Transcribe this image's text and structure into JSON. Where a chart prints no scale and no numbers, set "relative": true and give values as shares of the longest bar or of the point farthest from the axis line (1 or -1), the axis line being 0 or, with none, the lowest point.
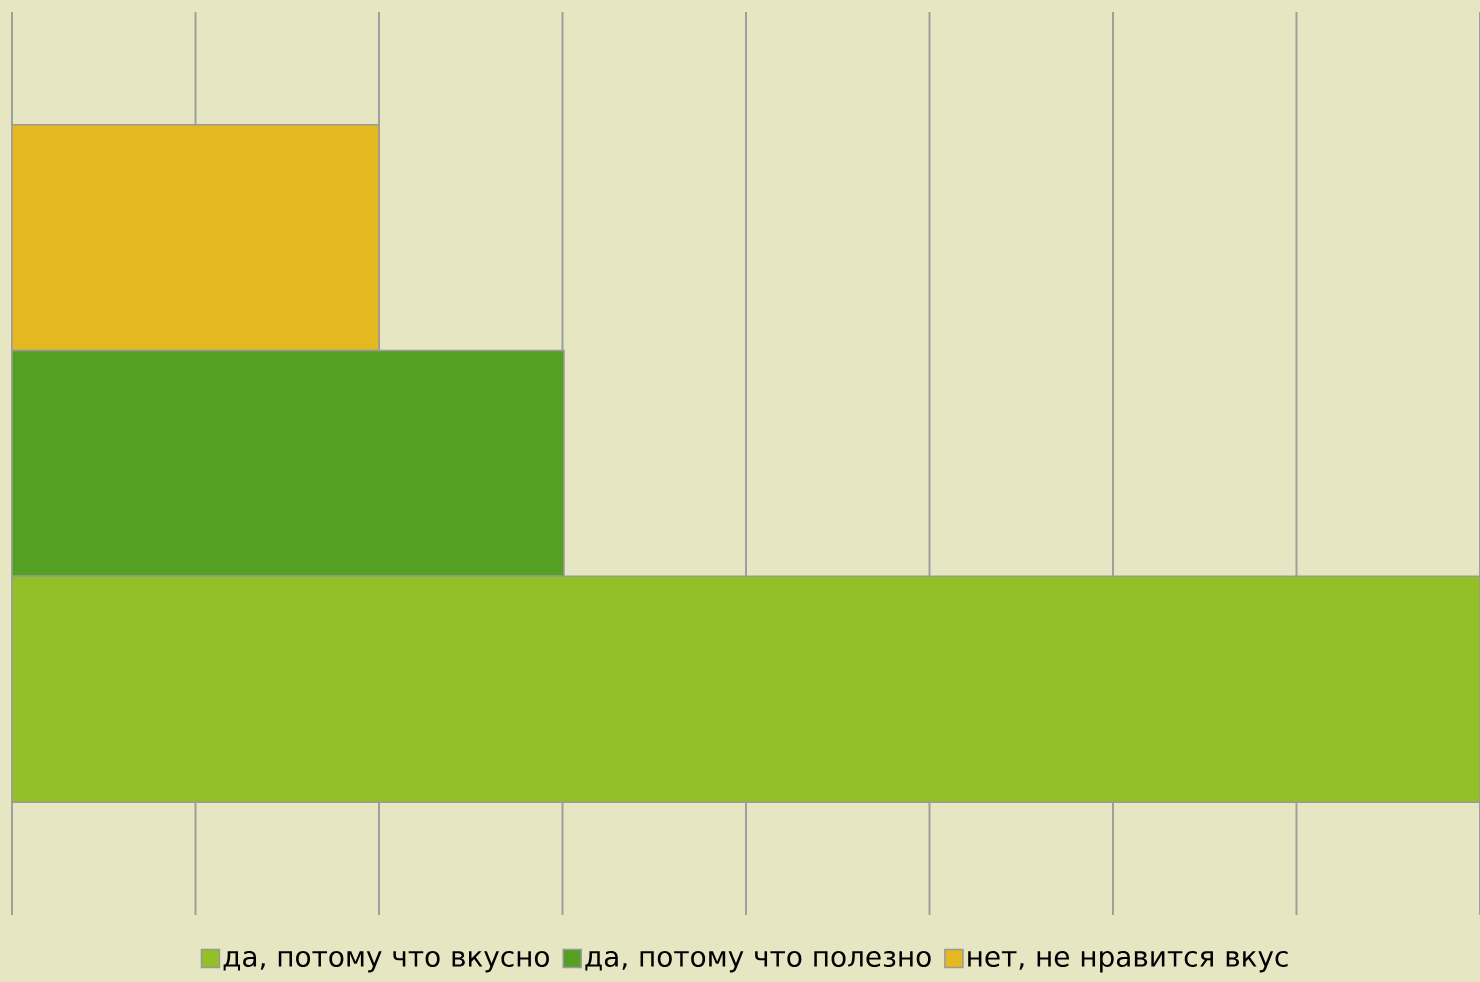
{
  "chart_data": {
    "type": "bar",
    "orientation": "horizontal",
    "relative": true,
    "categories": [
      null
    ],
    "series": [
      {
        "name": "нет, не нравится вкус",
        "color": "#e4b820",
        "values": [
          0.25
        ]
      },
      {
        "name": "да, потому что полезно",
        "color": "#55a022",
        "values": [
          0.376
        ]
      },
      {
        "name": "да, потому что вкусно",
        "color": "#92c026",
        "values": [
          1
        ]
      }
    ],
    "grid": "x",
    "legend": "bottom"
  }
}
